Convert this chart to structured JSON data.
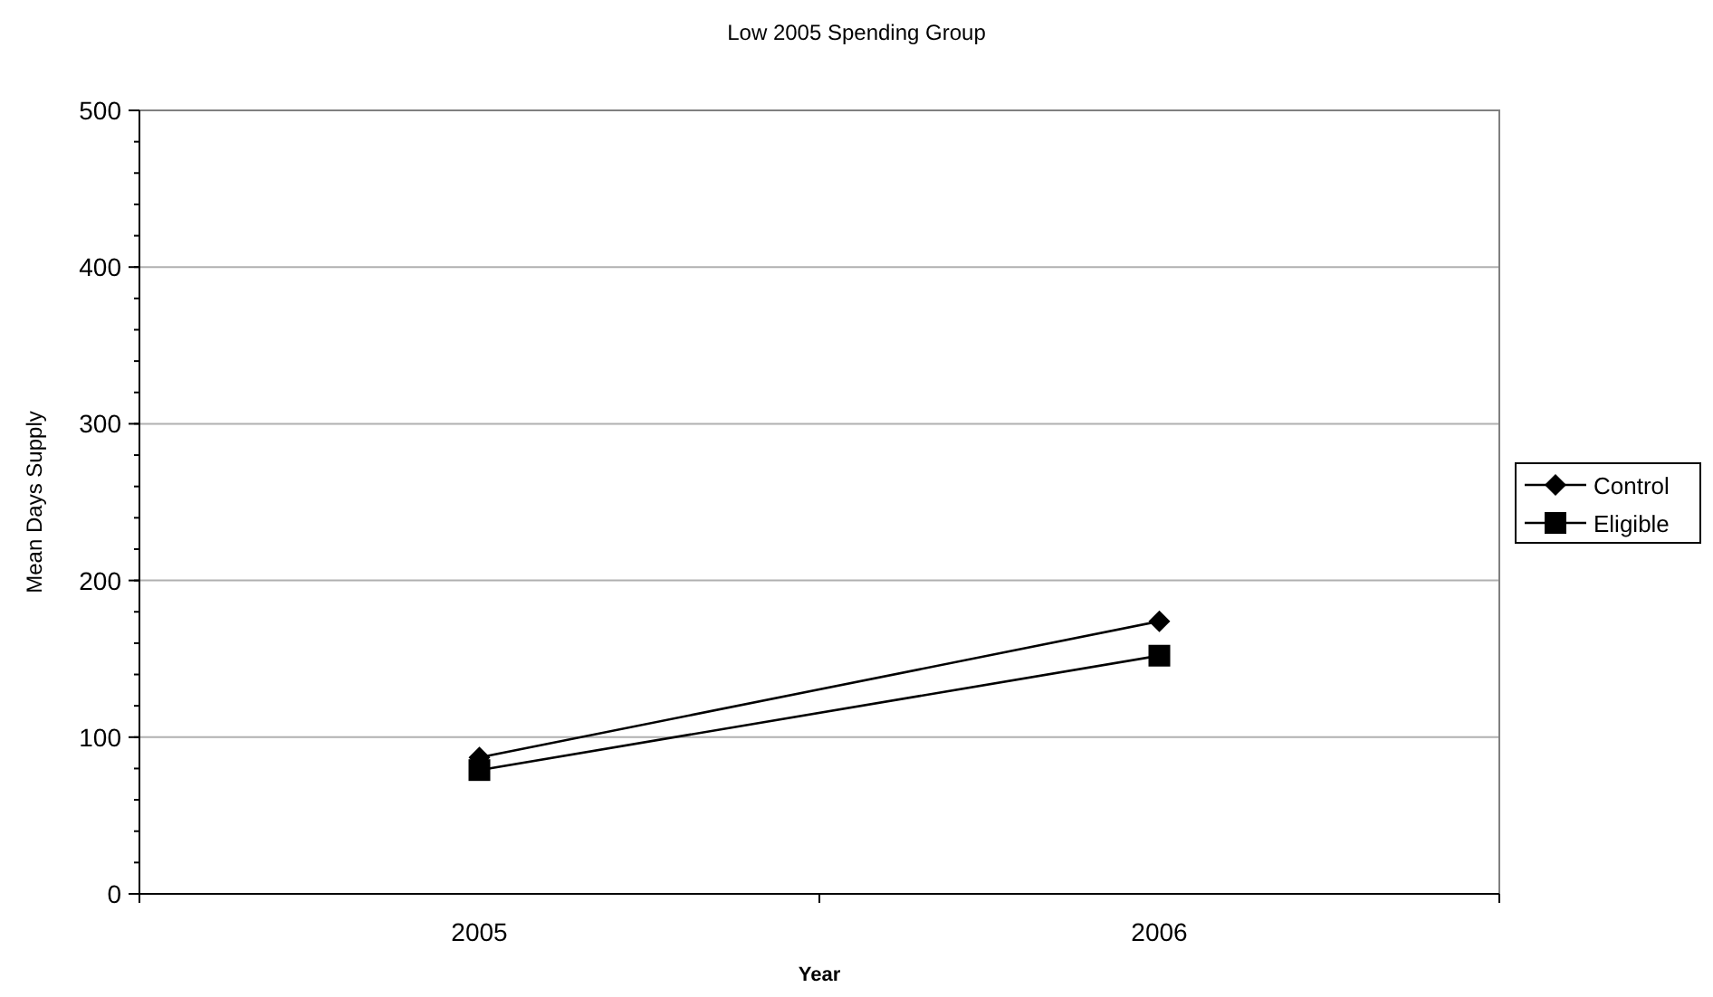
{
  "chart_data": {
    "type": "line",
    "title": "Low 2005 Spending Group",
    "xlabel": "Year",
    "ylabel": "Mean Days Supply",
    "categories": [
      "2005",
      "2006"
    ],
    "series": [
      {
        "name": "Control",
        "color": "#000000",
        "values": [
          87,
          174
        ],
        "marker": "diamond"
      },
      {
        "name": "Eligible",
        "color": "#000000",
        "values": [
          79,
          152
        ],
        "marker": "square"
      }
    ],
    "ylim": [
      0,
      500
    ],
    "yticks": [
      0,
      100,
      200,
      300,
      400,
      500
    ],
    "grid": "y",
    "legend": "right",
    "line_style": "solid"
  }
}
